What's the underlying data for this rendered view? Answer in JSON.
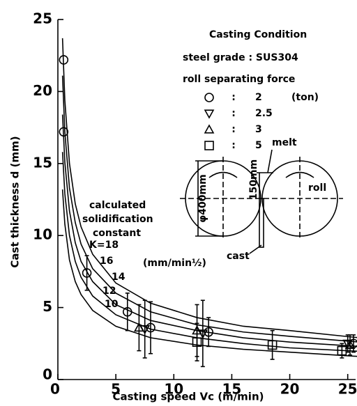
{
  "chart_data": {
    "type": "scatter",
    "xlabel": "Casting speed   Vc   (m/min)",
    "ylabel": "Cast thickness   d   (mm)",
    "xlim": [
      0,
      25.8
    ],
    "ylim": [
      0,
      25
    ],
    "xticks": [
      0,
      5,
      10,
      15,
      20,
      25
    ],
    "yticks": [
      0,
      5,
      10,
      15,
      20,
      25
    ],
    "legend_title": "Casting Condition",
    "steel_grade": "steel grade  :  SUS304",
    "legend_subtitle": "roll separating force",
    "legend_separator": ":",
    "legend_unit": "(ton)",
    "color": "#000000",
    "series": [
      {
        "name": "2",
        "marker": "circle",
        "x": [
          0.5,
          0.5,
          2.5,
          6,
          8,
          13,
          25.5
        ],
        "values": [
          22.2,
          17.2,
          7.4,
          4.7,
          3.6,
          3.3,
          2.5
        ],
        "errors": [
          null,
          null,
          1.2,
          1.3,
          1.8,
          1.0,
          0.6
        ]
      },
      {
        "name": "2.5",
        "marker": "triangle-down",
        "x": [
          7.5,
          12.5,
          25
        ],
        "values": [
          3.5,
          3.2,
          2.5
        ],
        "errors": [
          2.0,
          2.3,
          0.6
        ]
      },
      {
        "name": "3",
        "marker": "triangle-up",
        "x": [
          7,
          12,
          25.2
        ],
        "values": [
          3.6,
          3.4,
          2.4
        ],
        "errors": [
          1.6,
          1.8,
          0.7
        ]
      },
      {
        "name": "5",
        "marker": "square",
        "x": [
          12,
          18.5,
          24.5
        ],
        "values": [
          2.6,
          2.4,
          2.0
        ],
        "errors": [
          1.3,
          1.0,
          0.5
        ]
      }
    ],
    "curves_caption": [
      "calculated",
      "solidification",
      "constant"
    ],
    "curves_unit": "(mm/min½)",
    "curves": [
      {
        "name": "K=18",
        "x": [
          0.4,
          0.6,
          1,
          1.5,
          2,
          3,
          5,
          8,
          12,
          16,
          20,
          26
        ],
        "values": [
          23.7,
          19.4,
          15.0,
          12.2,
          10.6,
          8.7,
          6.7,
          5.3,
          4.3,
          3.7,
          3.4,
          2.9
        ]
      },
      {
        "name": "16",
        "x": [
          0.4,
          0.6,
          1,
          1.5,
          2,
          3,
          5,
          8,
          12,
          16,
          20,
          26
        ],
        "values": [
          21.1,
          17.2,
          13.3,
          10.9,
          9.4,
          7.7,
          6.0,
          4.7,
          3.8,
          3.3,
          3.0,
          2.6
        ]
      },
      {
        "name": "14",
        "x": [
          0.4,
          0.6,
          1,
          1.5,
          2,
          3,
          5,
          8,
          12,
          16,
          20,
          26
        ],
        "values": [
          18.4,
          15.1,
          11.7,
          9.5,
          8.2,
          6.8,
          5.2,
          4.1,
          3.4,
          2.9,
          2.6,
          2.3
        ]
      },
      {
        "name": "12",
        "x": [
          0.4,
          0.6,
          1,
          1.5,
          2,
          3,
          5,
          8,
          12,
          16,
          20,
          26
        ],
        "values": [
          15.8,
          12.9,
          10.0,
          8.2,
          7.1,
          5.8,
          4.5,
          3.5,
          2.9,
          2.5,
          2.2,
          1.96
        ]
      },
      {
        "name": "10",
        "x": [
          0.4,
          0.6,
          1,
          1.5,
          2,
          3,
          5,
          8,
          12,
          16,
          20,
          26
        ],
        "values": [
          13.2,
          10.8,
          8.3,
          6.8,
          5.9,
          4.8,
          3.7,
          2.9,
          2.4,
          2.1,
          1.9,
          1.6
        ]
      }
    ],
    "inset": {
      "melt": "melt",
      "roll": "roll",
      "cast": "cast",
      "diameter": "φ400mm",
      "height": "150mm"
    }
  }
}
